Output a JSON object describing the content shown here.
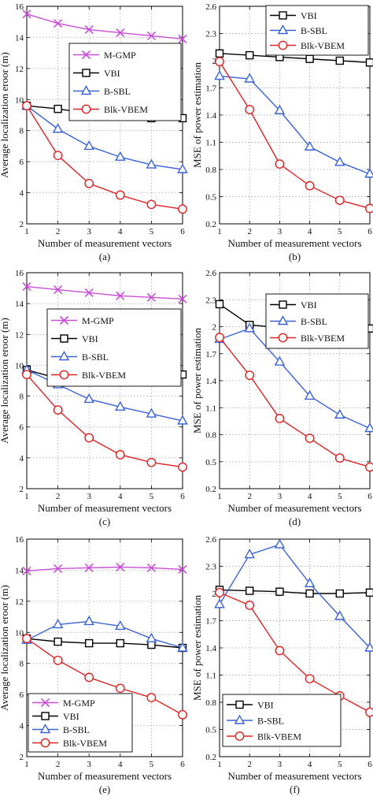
{
  "colors": {
    "M-GMP": "#c94fd6",
    "VBI": "#000000",
    "B-SBL": "#3a63d8",
    "Blk-VBEM": "#e02222"
  },
  "markers": {
    "M-GMP": "x",
    "VBI": "square",
    "B-SBL": "triangle",
    "Blk-VBEM": "circle"
  },
  "chart_data": [
    {
      "caption": "(a)",
      "type": "line",
      "xlabel": "Number of measurement vectors",
      "ylabel": "Average localization eroor (m)",
      "xlim": [
        1,
        6
      ],
      "ylim": [
        2,
        16
      ],
      "xticks": [
        1,
        2,
        3,
        4,
        5,
        6
      ],
      "yticks": [
        2,
        4,
        6,
        8,
        10,
        12,
        14,
        16
      ],
      "legend_position": "top-right",
      "x": [
        1,
        2,
        3,
        4,
        5,
        6
      ],
      "series": [
        {
          "name": "M-GMP",
          "values": [
            15.5,
            14.9,
            14.5,
            14.3,
            14.1,
            13.9
          ]
        },
        {
          "name": "VBI",
          "values": [
            9.6,
            9.4,
            9.1,
            8.95,
            8.8,
            8.8
          ]
        },
        {
          "name": "B-SBL",
          "values": [
            9.6,
            8.1,
            7.0,
            6.3,
            5.8,
            5.5
          ]
        },
        {
          "name": "Blk-VBEM",
          "values": [
            9.6,
            6.4,
            4.6,
            3.85,
            3.25,
            2.95
          ]
        }
      ]
    },
    {
      "caption": "(b)",
      "type": "line",
      "xlabel": "Number of measurement vectors",
      "ylabel": "MSE of power estimation",
      "xlim": [
        1,
        6
      ],
      "ylim": [
        0.2,
        2.6
      ],
      "xticks": [
        1,
        2,
        3,
        4,
        5,
        6
      ],
      "yticks": [
        0.2,
        0.5,
        0.8,
        1.1,
        1.4,
        1.7,
        2,
        2.3,
        2.6
      ],
      "legend_position": "top-right",
      "x": [
        1,
        2,
        3,
        4,
        5,
        6
      ],
      "series": [
        {
          "name": "VBI",
          "values": [
            2.08,
            2.06,
            2.04,
            2.02,
            2.0,
            1.98
          ]
        },
        {
          "name": "B-SBL",
          "values": [
            1.83,
            1.8,
            1.45,
            1.05,
            0.88,
            0.75
          ]
        },
        {
          "name": "Blk-VBEM",
          "values": [
            1.99,
            1.46,
            0.86,
            0.62,
            0.46,
            0.37
          ]
        }
      ]
    },
    {
      "caption": "(c)",
      "type": "line",
      "xlabel": "Number of measurement vectors",
      "ylabel": "Average localization eroor (m)",
      "xlim": [
        1,
        6
      ],
      "ylim": [
        2,
        16
      ],
      "xticks": [
        1,
        2,
        3,
        4,
        5,
        6
      ],
      "yticks": [
        2,
        4,
        6,
        8,
        10,
        12,
        14,
        16
      ],
      "legend_position": "top-right",
      "x": [
        1,
        2,
        3,
        4,
        5,
        6
      ],
      "series": [
        {
          "name": "M-GMP",
          "values": [
            15.1,
            14.9,
            14.7,
            14.5,
            14.4,
            14.3
          ]
        },
        {
          "name": "VBI",
          "values": [
            9.7,
            9.15,
            9.0,
            9.05,
            9.2,
            9.4
          ]
        },
        {
          "name": "B-SBL",
          "values": [
            9.7,
            8.75,
            7.8,
            7.3,
            6.85,
            6.4
          ]
        },
        {
          "name": "Blk-VBEM",
          "values": [
            9.4,
            7.1,
            5.3,
            4.2,
            3.7,
            3.4
          ]
        }
      ]
    },
    {
      "caption": "(d)",
      "type": "line",
      "xlabel": "Number of measurement vectors",
      "ylabel": "MSE of power estimation",
      "xlim": [
        1,
        6
      ],
      "ylim": [
        0.2,
        2.6
      ],
      "xticks": [
        1,
        2,
        3,
        4,
        5,
        6
      ],
      "yticks": [
        0.2,
        0.5,
        0.8,
        1.1,
        1.4,
        1.7,
        2,
        2.3,
        2.6
      ],
      "legend_position": "top-right",
      "x": [
        1,
        2,
        3,
        4,
        5,
        6
      ],
      "series": [
        {
          "name": "VBI",
          "values": [
            2.25,
            2.02,
            1.99,
            1.97,
            1.98,
            1.98
          ]
        },
        {
          "name": "B-SBL",
          "values": [
            1.86,
            1.98,
            1.61,
            1.23,
            1.02,
            0.87
          ]
        },
        {
          "name": "Blk-VBEM",
          "values": [
            1.88,
            1.46,
            0.98,
            0.76,
            0.54,
            0.44
          ]
        }
      ]
    },
    {
      "caption": "(e)",
      "type": "line",
      "xlabel": "Number of measurement vectors",
      "ylabel": "Average localization eroor (m)",
      "xlim": [
        1,
        6
      ],
      "ylim": [
        2,
        16
      ],
      "xticks": [
        1,
        2,
        3,
        4,
        5,
        6
      ],
      "yticks": [
        2,
        4,
        6,
        8,
        10,
        12,
        14,
        16
      ],
      "legend_position": "bottom-left",
      "x": [
        1,
        2,
        3,
        4,
        5,
        6
      ],
      "series": [
        {
          "name": "M-GMP",
          "values": [
            13.95,
            14.1,
            14.15,
            14.2,
            14.15,
            14.05
          ]
        },
        {
          "name": "VBI",
          "values": [
            9.6,
            9.4,
            9.3,
            9.3,
            9.2,
            9.0
          ]
        },
        {
          "name": "B-SBL",
          "values": [
            9.5,
            10.5,
            10.7,
            10.4,
            9.6,
            9.0
          ]
        },
        {
          "name": "Blk-VBEM",
          "values": [
            9.6,
            8.2,
            7.1,
            6.4,
            5.8,
            4.7
          ]
        }
      ]
    },
    {
      "caption": "(f)",
      "type": "line",
      "xlabel": "Number of measurement vectors",
      "ylabel": "MSE of power estimation",
      "xlim": [
        1,
        6
      ],
      "ylim": [
        0.2,
        2.6
      ],
      "xticks": [
        1,
        2,
        3,
        4,
        5,
        6
      ],
      "yticks": [
        0.2,
        0.5,
        0.8,
        1.1,
        1.4,
        1.7,
        2,
        2.3,
        2.6
      ],
      "legend_position": "bottom-right",
      "x": [
        1,
        2,
        3,
        4,
        5,
        6
      ],
      "series": [
        {
          "name": "VBI",
          "values": [
            2.04,
            2.03,
            2.02,
            2.0,
            2.0,
            2.01
          ]
        },
        {
          "name": "B-SBL",
          "values": [
            1.88,
            2.43,
            2.54,
            2.11,
            1.75,
            1.4
          ]
        },
        {
          "name": "Blk-VBEM",
          "values": [
            2.01,
            1.87,
            1.37,
            1.06,
            0.87,
            0.69
          ]
        }
      ]
    }
  ]
}
